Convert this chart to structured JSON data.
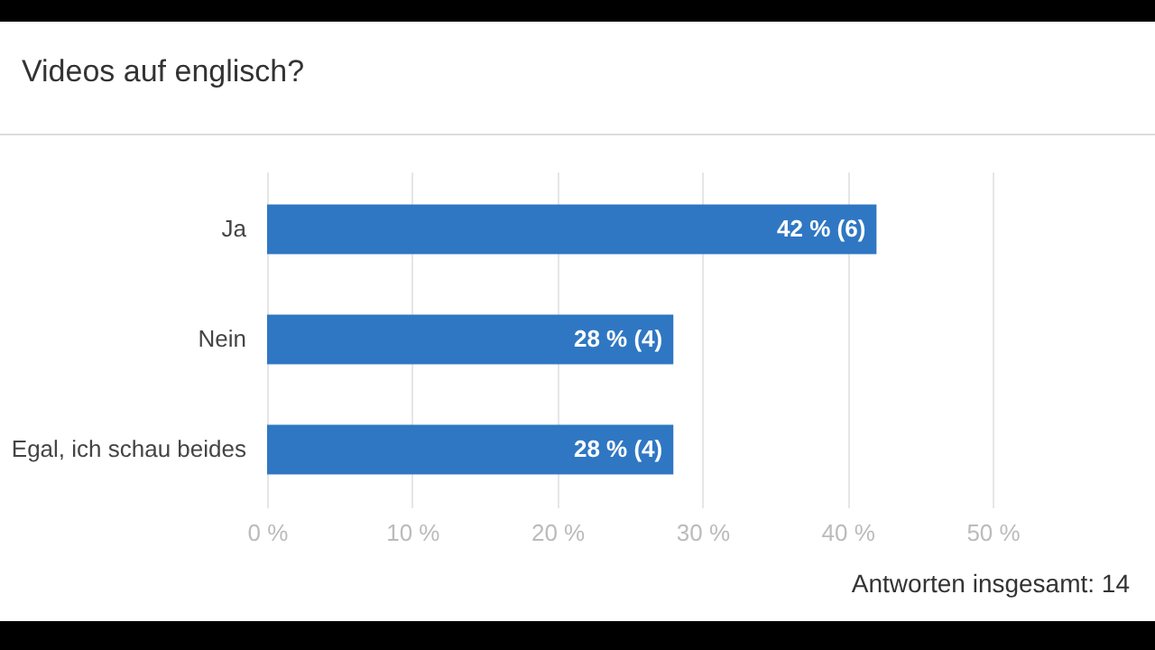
{
  "chart_data": {
    "type": "bar",
    "orientation": "horizontal",
    "title": "Videos auf englisch?",
    "categories": [
      "Ja",
      "Nein",
      "Egal, ich schau beides"
    ],
    "values": [
      42,
      28,
      28
    ],
    "value_labels": [
      "42 % (6)",
      "28 % (4)",
      "28 % (4)"
    ],
    "color": "#2f77c3",
    "xlim": [
      0,
      50
    ],
    "xticks": [
      {
        "value": 0,
        "label": "0 %"
      },
      {
        "value": 10,
        "label": "10 %"
      },
      {
        "value": 20,
        "label": "20 %"
      },
      {
        "value": 30,
        "label": "30 %"
      },
      {
        "value": 40,
        "label": "40 %"
      },
      {
        "value": 50,
        "label": "50 %"
      }
    ],
    "grid": true,
    "annotations": [
      "Antworten insgesamt: 14"
    ]
  }
}
